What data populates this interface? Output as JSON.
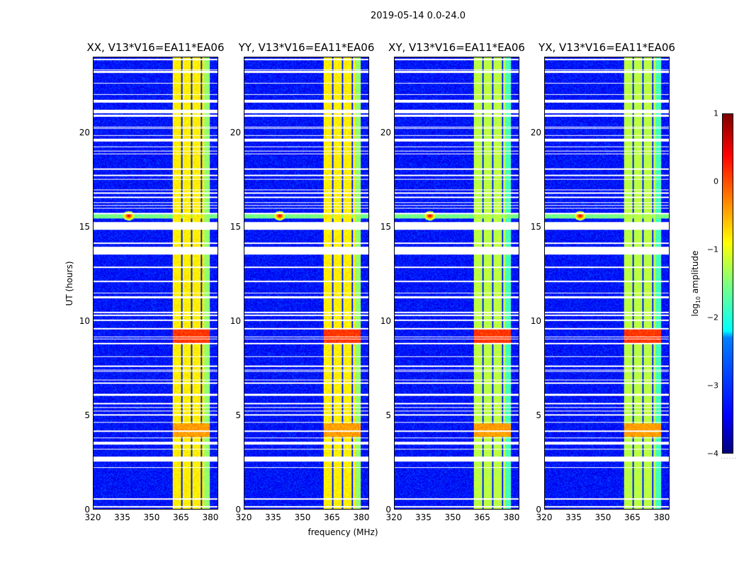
{
  "suptitle": "2019-05-14 0.0-24.0",
  "chart_data": {
    "type": "heatmap",
    "xlabel": "frequency (MHz)",
    "ylabel": "UT (hours)",
    "xlim": [
      320,
      384
    ],
    "ylim": [
      0,
      24
    ],
    "xticks": [
      "320",
      "335",
      "350",
      "365",
      "380"
    ],
    "xtick_values": [
      320,
      335,
      350,
      365,
      380
    ],
    "yticks": [
      "0",
      "5",
      "10",
      "15",
      "20"
    ],
    "ytick_values": [
      0,
      5,
      10,
      15,
      20
    ],
    "colormap": "jet",
    "colorbar": {
      "label_main": "log",
      "label_sub": "10",
      "label_rest": " amplitude",
      "range": [
        -4,
        1
      ],
      "ticks": [
        "1",
        "0",
        "−1",
        "−2",
        "−3",
        "−4"
      ],
      "tick_values": [
        1,
        0,
        -1,
        -2,
        -3,
        -4
      ]
    },
    "background_log_amplitude": -3.3,
    "rfi_band_mhz": [
      360.5,
      380
    ],
    "band_channel_gaps_mhz": [
      365.5,
      370.5,
      375.5
    ],
    "flagged_hours": [
      [
        2.55,
        2.8
      ],
      [
        3.45,
        3.6
      ],
      [
        13.55,
        13.9
      ],
      [
        14.85,
        15.25
      ],
      [
        19.55,
        19.7
      ],
      [
        21.05,
        21.15
      ],
      [
        21.6,
        21.75
      ],
      [
        7.55,
        7.62
      ],
      [
        23.2,
        23.3
      ]
    ],
    "events": [
      {
        "time_h": 15.6,
        "freq_mhz": 338,
        "log_amplitude": 0.6
      },
      {
        "time_h": 9.2,
        "band": true,
        "log_amplitude": 0.3
      },
      {
        "time_h": 4.2,
        "band": true,
        "log_amplitude": -0.2
      }
    ],
    "panels": [
      {
        "title": "XX, V13*V16=EA11*EA06",
        "band_log_amplitude": -0.8
      },
      {
        "title": "YY, V13*V16=EA11*EA06",
        "band_log_amplitude": -0.8
      },
      {
        "title": "XY, V13*V16=EA11*EA06",
        "band_log_amplitude": -1.2
      },
      {
        "title": "YX, V13*V16=EA11*EA06",
        "band_log_amplitude": -1.2
      }
    ]
  }
}
